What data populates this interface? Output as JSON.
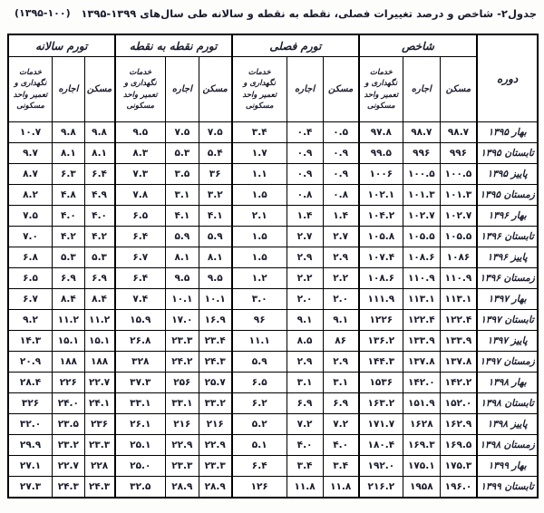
{
  "title": {
    "main": "جدول۲- شاخص و درصد تغییرات فصلی، نقطه به نقطه و سالانه طی سال‌های ۱۳۹۹-۱۳۹۵",
    "base_note": "(۱۳۹۵-۱۰۰)"
  },
  "table": {
    "period_header": "دوره",
    "groups": [
      {
        "label": "شاخص"
      },
      {
        "label": "تورم فصلی"
      },
      {
        "label": "تورم نقطه به نقطه"
      },
      {
        "label": "تورم سالانه"
      }
    ],
    "sub_headers": {
      "housing": "مسکن",
      "rent": "اجاره",
      "services": "خدمات\nنگهداری و\nتعمیر واحد\nمسکونی"
    },
    "rows": [
      {
        "period": "بهار ۱۳۹۵",
        "values": [
          "۹۸.۷",
          "۹۸.۷",
          "۹۷.۸",
          "۰.۵",
          "۰.۴",
          "۳.۴",
          "۷.۵",
          "۷.۵",
          "۹.۵",
          "۹.۸",
          "۹.۸",
          "۱۰.۷"
        ]
      },
      {
        "period": "تابستان ۱۳۹۵",
        "values": [
          "۹۹۶",
          "۹۹۶",
          "۹۹.۵",
          "۰.۹",
          "۰.۹",
          "۱.۷",
          "۵.۴",
          "۵.۳",
          "۸.۳",
          "۸.۱",
          "۸.۱",
          "۹.۷"
        ]
      },
      {
        "period": "پاییز ۱۳۹۵",
        "values": [
          "۱۰۰.۵",
          "۱۰۰.۵",
          "۱۰۰۶",
          "۰.۹",
          "۰.۹",
          "۱.۱",
          "۳۶",
          "۳.۵",
          "۷.۳",
          "۶.۴",
          "۶.۳",
          "۸.۷"
        ]
      },
      {
        "period": "زمستان ۱۳۹۵",
        "values": [
          "۱۰۱.۳",
          "۱۰۱.۳",
          "۱۰۲.۱",
          "۰.۸",
          "۰.۸",
          "۱.۵",
          "۳.۲",
          "۳.۱",
          "۷.۸",
          "۴.۹",
          "۴.۸",
          "۸.۲"
        ]
      },
      {
        "period": "بهار ۱۳۹۶",
        "values": [
          "۱۰۲.۷",
          "۱۰۲.۷",
          "۱۰۴.۲",
          "۱.۴",
          "۱.۴",
          "۲.۱",
          "۴.۱",
          "۴.۱",
          "۶.۵",
          "۴.۰",
          "۴.۰",
          "۷.۵"
        ]
      },
      {
        "period": "تابستان ۱۳۹۶",
        "values": [
          "۱۰۵.۵",
          "۱۰۵.۵",
          "۱۰۵.۸",
          "۲.۷",
          "۲.۷",
          "۱.۵",
          "۵.۹",
          "۵.۹",
          "۶.۴",
          "۴.۲",
          "۴.۲",
          "۷.۰"
        ]
      },
      {
        "period": "پاییز ۱۳۹۶",
        "values": [
          "۱۰۸۶",
          "۱۰۸.۶",
          "۱۰۷.۴",
          "۲.۹",
          "۲.۹",
          "۱.۵",
          "۸.۱",
          "۸.۱",
          "۶.۷",
          "۵.۳",
          "۵.۳",
          "۶.۸"
        ]
      },
      {
        "period": "زمستان ۱۳۹۶",
        "values": [
          "۱۱۰.۹",
          "۱۱۰.۹",
          "۱۰۸.۶",
          "۲.۲",
          "۲.۲",
          "۱.۲",
          "۹.۵",
          "۹.۵",
          "۶.۴",
          "۶.۹",
          "۶.۹",
          "۶.۵"
        ]
      },
      {
        "period": "بهار ۱۳۹۷",
        "values": [
          "۱۱۳.۱",
          "۱۱۳.۱",
          "۱۱۱.۹",
          "۲.۰",
          "۲.۰",
          "۳.۰",
          "۱۰.۱",
          "۱۰.۱",
          "۷.۴",
          "۸.۴",
          "۸.۴",
          "۶.۷"
        ]
      },
      {
        "period": "تابستان ۱۳۹۷",
        "values": [
          "۱۲۲.۴",
          "۱۲۲.۴",
          "۱۲۲۶",
          "۹.۱",
          "۹.۱",
          "۹۶",
          "۱۶.۹",
          "۱۷.۰",
          "۱۵.۹",
          "۱۱.۲",
          "۱۱.۲",
          "۹.۲"
        ]
      },
      {
        "period": "پاییز ۱۳۹۷",
        "values": [
          "۱۳۳.۹",
          "۱۳۳.۹",
          "۱۳۶.۲",
          "۸۶",
          "۸.۵",
          "۱۱.۱",
          "۲۳.۴",
          "۲۳.۳",
          "۲۶.۸",
          "۱۵.۱",
          "۱۵.۱",
          "۱۴.۳"
        ]
      },
      {
        "period": "زمستان ۱۳۹۷",
        "values": [
          "۱۳۷.۸",
          "۱۳۷.۸",
          "۱۴۴.۳",
          "۲.۹",
          "۲.۹",
          "۵.۹",
          "۲۴.۳",
          "۲۴.۲",
          "۳۲۸",
          "۱۸۸",
          "۱۸۸",
          "۲۰.۹"
        ]
      },
      {
        "period": "بهار ۱۳۹۸",
        "values": [
          "۱۴۲.۲",
          "۱۴۲.۰",
          "۱۵۳۶",
          "۳.۱",
          "۳.۱",
          "۶.۵",
          "۲۵.۷",
          "۲۵۶",
          "۳۷.۳",
          "۲۲.۷",
          "۲۲۶",
          "۲۸.۴"
        ]
      },
      {
        "period": "تابستان ۱۳۹۸",
        "values": [
          "۱۵۲.۰",
          "۱۵۱.۹",
          "۱۶۳.۲",
          "۶.۹",
          "۶.۹",
          "۶.۲",
          "۳۳.۲",
          "۳۳.۱",
          "۳۳.۱",
          "۲۴.۱",
          "۲۴.۰",
          "۳۲۶"
        ]
      },
      {
        "period": "پاییز ۱۳۹۸",
        "values": [
          "۱۶۲.۹",
          "۱۶۲۸",
          "۱۷۱.۷",
          "۷.۲",
          "۷.۲",
          "۵.۲",
          "۲۱۶",
          "۲۱۶",
          "۲۶.۱",
          "۲۳۶",
          "۲۳.۵",
          "۳۲.۰"
        ]
      },
      {
        "period": "زمستان ۱۳۹۸",
        "values": [
          "۱۶۹.۵",
          "۱۶۹.۳",
          "۱۸۰.۴",
          "۴.۰",
          "۴.۰",
          "۵.۱",
          "۲۲.۹",
          "۲۲.۹",
          "۲۵.۱",
          "۲۳.۳",
          "۲۳.۲",
          "۲۹.۹"
        ]
      },
      {
        "period": "بهار ۱۳۹۹",
        "values": [
          "۱۷۵.۳",
          "۱۷۵.۱",
          "۱۹۲.۰",
          "۳.۴",
          "۳.۴",
          "۶.۴",
          "۲۳.۳",
          "۲۳.۳",
          "۲۵.۰",
          "۲۲۸",
          "۲۲.۷",
          "۲۷.۱"
        ]
      },
      {
        "period": "تابستان ۱۳۹۹",
        "values": [
          "۱۹۶.۰",
          "۱۹۵۸",
          "۲۱۶.۲",
          "۱۱.۸",
          "۱۱.۸",
          "۱۲۶",
          "۲۸.۹",
          "۲۸.۹",
          "۳۲.۵",
          "۲۴.۳",
          "۲۴.۳",
          "۲۷.۳"
        ]
      }
    ]
  }
}
